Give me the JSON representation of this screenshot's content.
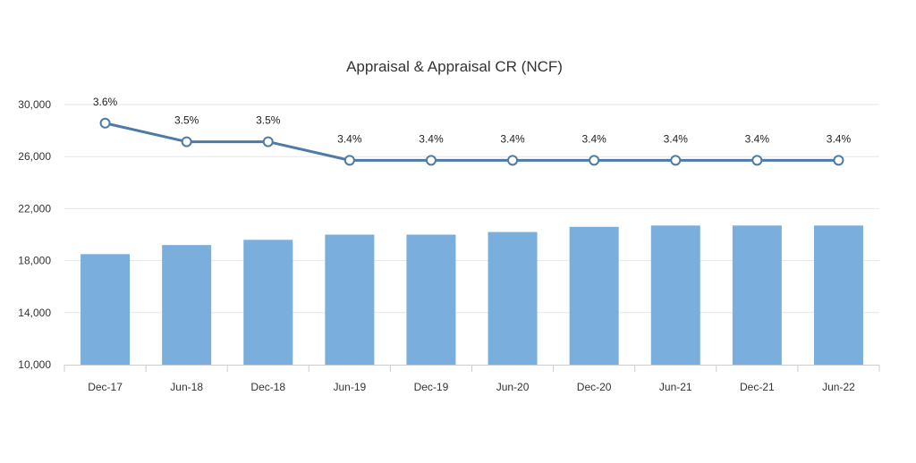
{
  "chart_data": {
    "type": "bar+line",
    "title": "Appraisal & Appraisal CR (NCF)",
    "categories": [
      "Dec-17",
      "Jun-18",
      "Dec-18",
      "Jun-19",
      "Dec-19",
      "Jun-20",
      "Dec-20",
      "Jun-21",
      "Dec-21",
      "Jun-22"
    ],
    "y_axis": {
      "min": 10000,
      "max": 30000,
      "ticks": [
        10000,
        14000,
        18000,
        22000,
        26000,
        30000
      ],
      "tick_labels": [
        "10,000",
        "14,000",
        "18,000",
        "22,000",
        "26,000",
        "30,000"
      ],
      "grid": true
    },
    "series": [
      {
        "name": "Appraisal",
        "type": "bar",
        "color": "#7aaedc",
        "values": [
          18500,
          19200,
          19600,
          20000,
          20000,
          20200,
          20600,
          20700,
          20700,
          20700
        ]
      },
      {
        "name": "Appraisal CR",
        "type": "line",
        "color": "#4e7ba6",
        "values": [
          3.6,
          3.5,
          3.5,
          3.4,
          3.4,
          3.4,
          3.4,
          3.4,
          3.4,
          3.4
        ],
        "labels": [
          "3.6%",
          "3.5%",
          "3.5%",
          "3.4%",
          "3.4%",
          "3.4%",
          "3.4%",
          "3.4%",
          "3.4%",
          "3.4%"
        ],
        "secondary_range": [
          2.3,
          3.7
        ]
      }
    ],
    "legend": "none"
  }
}
